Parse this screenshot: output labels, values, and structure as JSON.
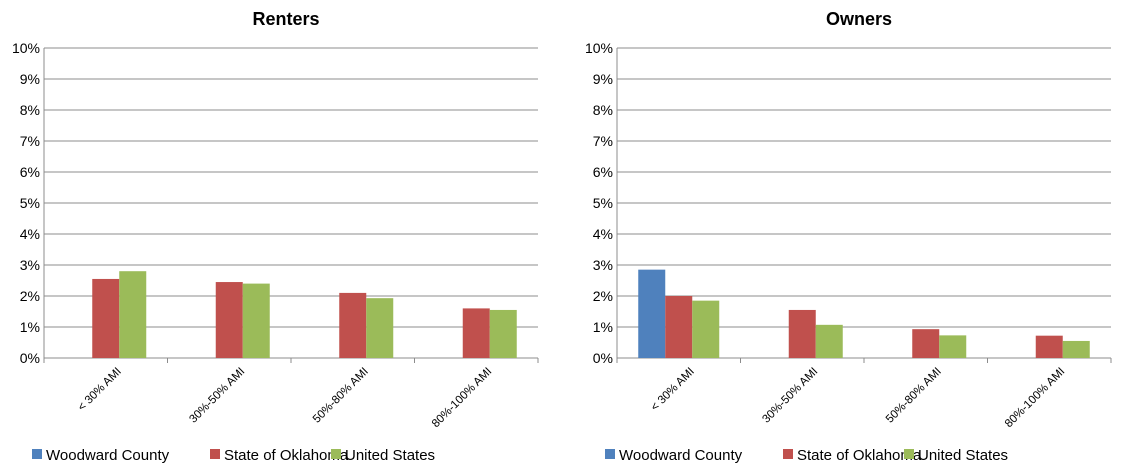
{
  "legend": [
    "Woodward County",
    "State of Oklahoma",
    "United States"
  ],
  "colors": [
    "#4f81bd",
    "#c0504d",
    "#9bbb59"
  ],
  "chart_data": [
    {
      "type": "bar",
      "title": "Renters",
      "categories": [
        "< 30% AMI",
        "30%-50% AMI",
        "50%-80% AMI",
        "80%-100% AMI"
      ],
      "series": [
        {
          "name": "Woodward County",
          "values": [
            0,
            0,
            0,
            0
          ]
        },
        {
          "name": "State of Oklahoma",
          "values": [
            2.55,
            2.45,
            2.1,
            1.6
          ]
        },
        {
          "name": "United States",
          "values": [
            2.8,
            2.4,
            1.93,
            1.55
          ]
        }
      ],
      "ylim": [
        0,
        10
      ],
      "yticks": [
        "0%",
        "1%",
        "2%",
        "3%",
        "4%",
        "5%",
        "6%",
        "7%",
        "8%",
        "9%",
        "10%"
      ],
      "grid": true,
      "legend_position": "bottom"
    },
    {
      "type": "bar",
      "title": "Owners",
      "categories": [
        "< 30% AMI",
        "30%-50% AMI",
        "50%-80% AMI",
        "80%-100% AMI"
      ],
      "series": [
        {
          "name": "Woodward County",
          "values": [
            2.85,
            0,
            0,
            0
          ]
        },
        {
          "name": "State of Oklahoma",
          "values": [
            2.0,
            1.55,
            0.93,
            0.72
          ]
        },
        {
          "name": "United States",
          "values": [
            1.85,
            1.07,
            0.73,
            0.55
          ]
        }
      ],
      "ylim": [
        0,
        10
      ],
      "yticks": [
        "0%",
        "1%",
        "2%",
        "3%",
        "4%",
        "5%",
        "6%",
        "7%",
        "8%",
        "9%",
        "10%"
      ],
      "grid": true,
      "legend_position": "bottom"
    }
  ]
}
